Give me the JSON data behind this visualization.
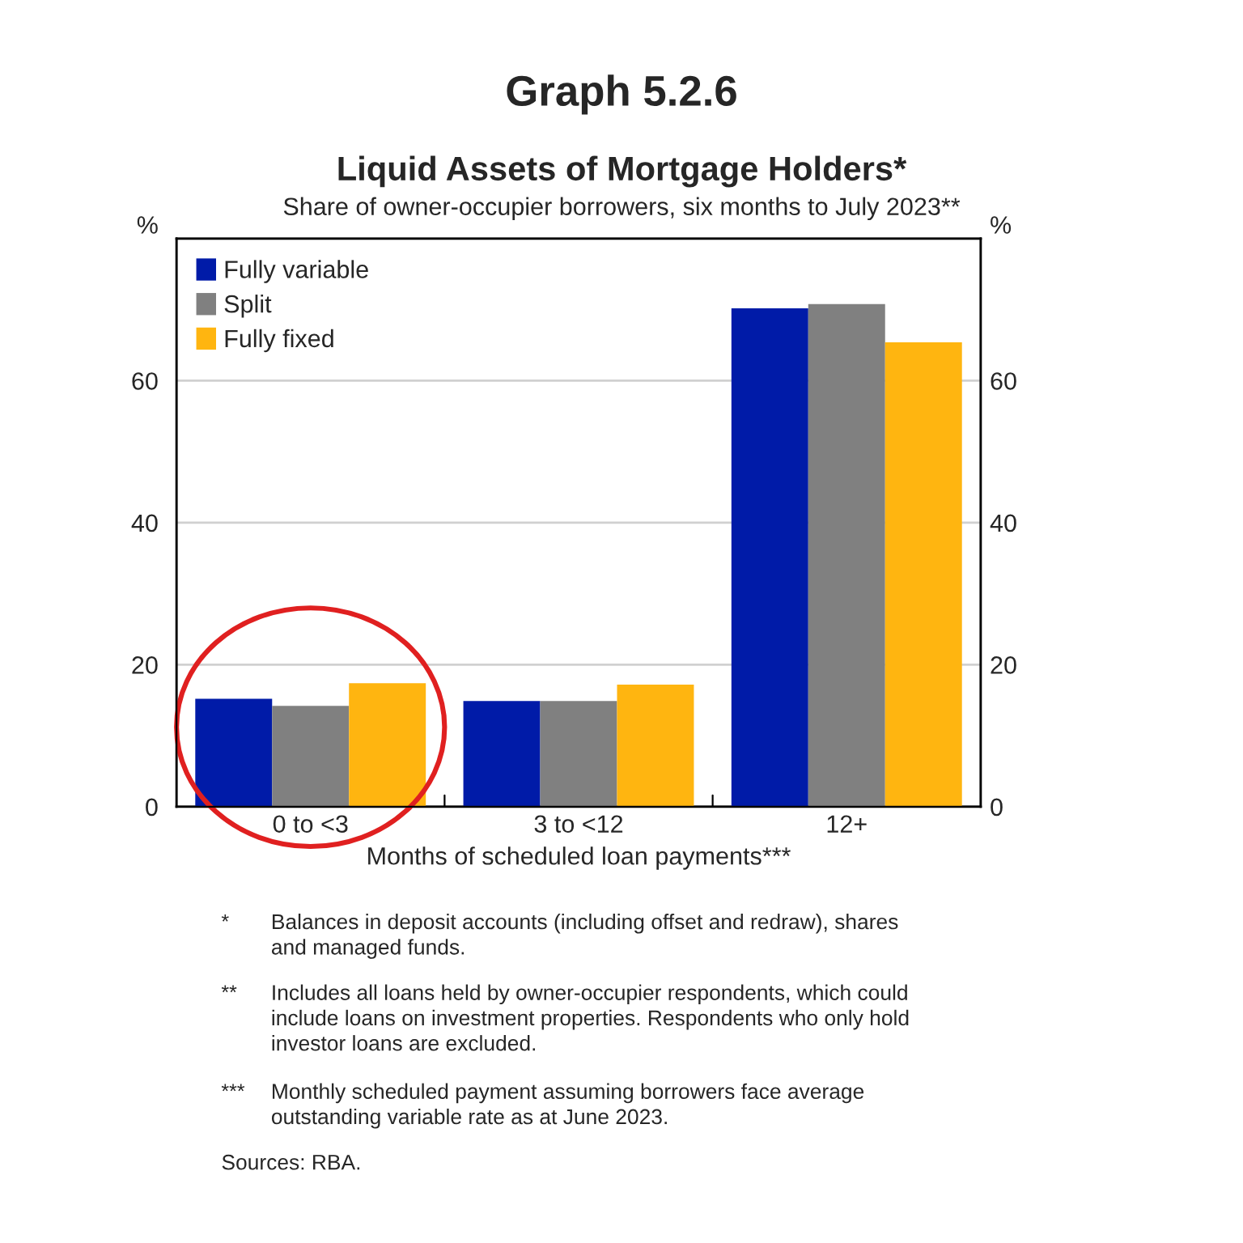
{
  "chart_data": {
    "type": "bar",
    "title": "Liquid Assets of Mortgage Holders*",
    "subtitle": "Share of owner-occupier borrowers, six months to July 2023**",
    "xlabel": "Months of scheduled loan payments***",
    "categories": [
      "0 to <3",
      "3 to <12",
      "12+"
    ],
    "series": [
      {
        "name": "Fully variable",
        "color": "#001ba8",
        "values": [
          15.2,
          14.9,
          70.2
        ]
      },
      {
        "name": "Split",
        "color": "#808080",
        "values": [
          14.2,
          14.9,
          70.8
        ]
      },
      {
        "name": "Fully fixed",
        "color": "#ffb510",
        "values": [
          17.4,
          17.2,
          65.4
        ]
      }
    ],
    "ylim": [
      0,
      80
    ],
    "yticks": [
      0,
      20,
      40,
      60,
      {
        "value": 80,
        "label": "%"
      }
    ],
    "y2lim": [
      0,
      80
    ],
    "y2ticks": [
      0,
      20,
      40,
      60,
      {
        "value": 80,
        "label": "%"
      }
    ],
    "grid": "y",
    "legend": "top left",
    "annotations": [
      "Graph 5.2.6",
      "*\tBalances in deposit accounts (including offset and redraw), shares\nand managed funds.",
      "**\tIncludes all loans held by owner-occupier respondents, which could\ninclude loans on investment properties. Respondents who only hold\ninvestor loans are excluded.",
      "***\tMonthly scheduled payment assuming borrowers face average\noutstanding variable rate as at June 2023.",
      "Sources: RBA."
    ]
  }
}
